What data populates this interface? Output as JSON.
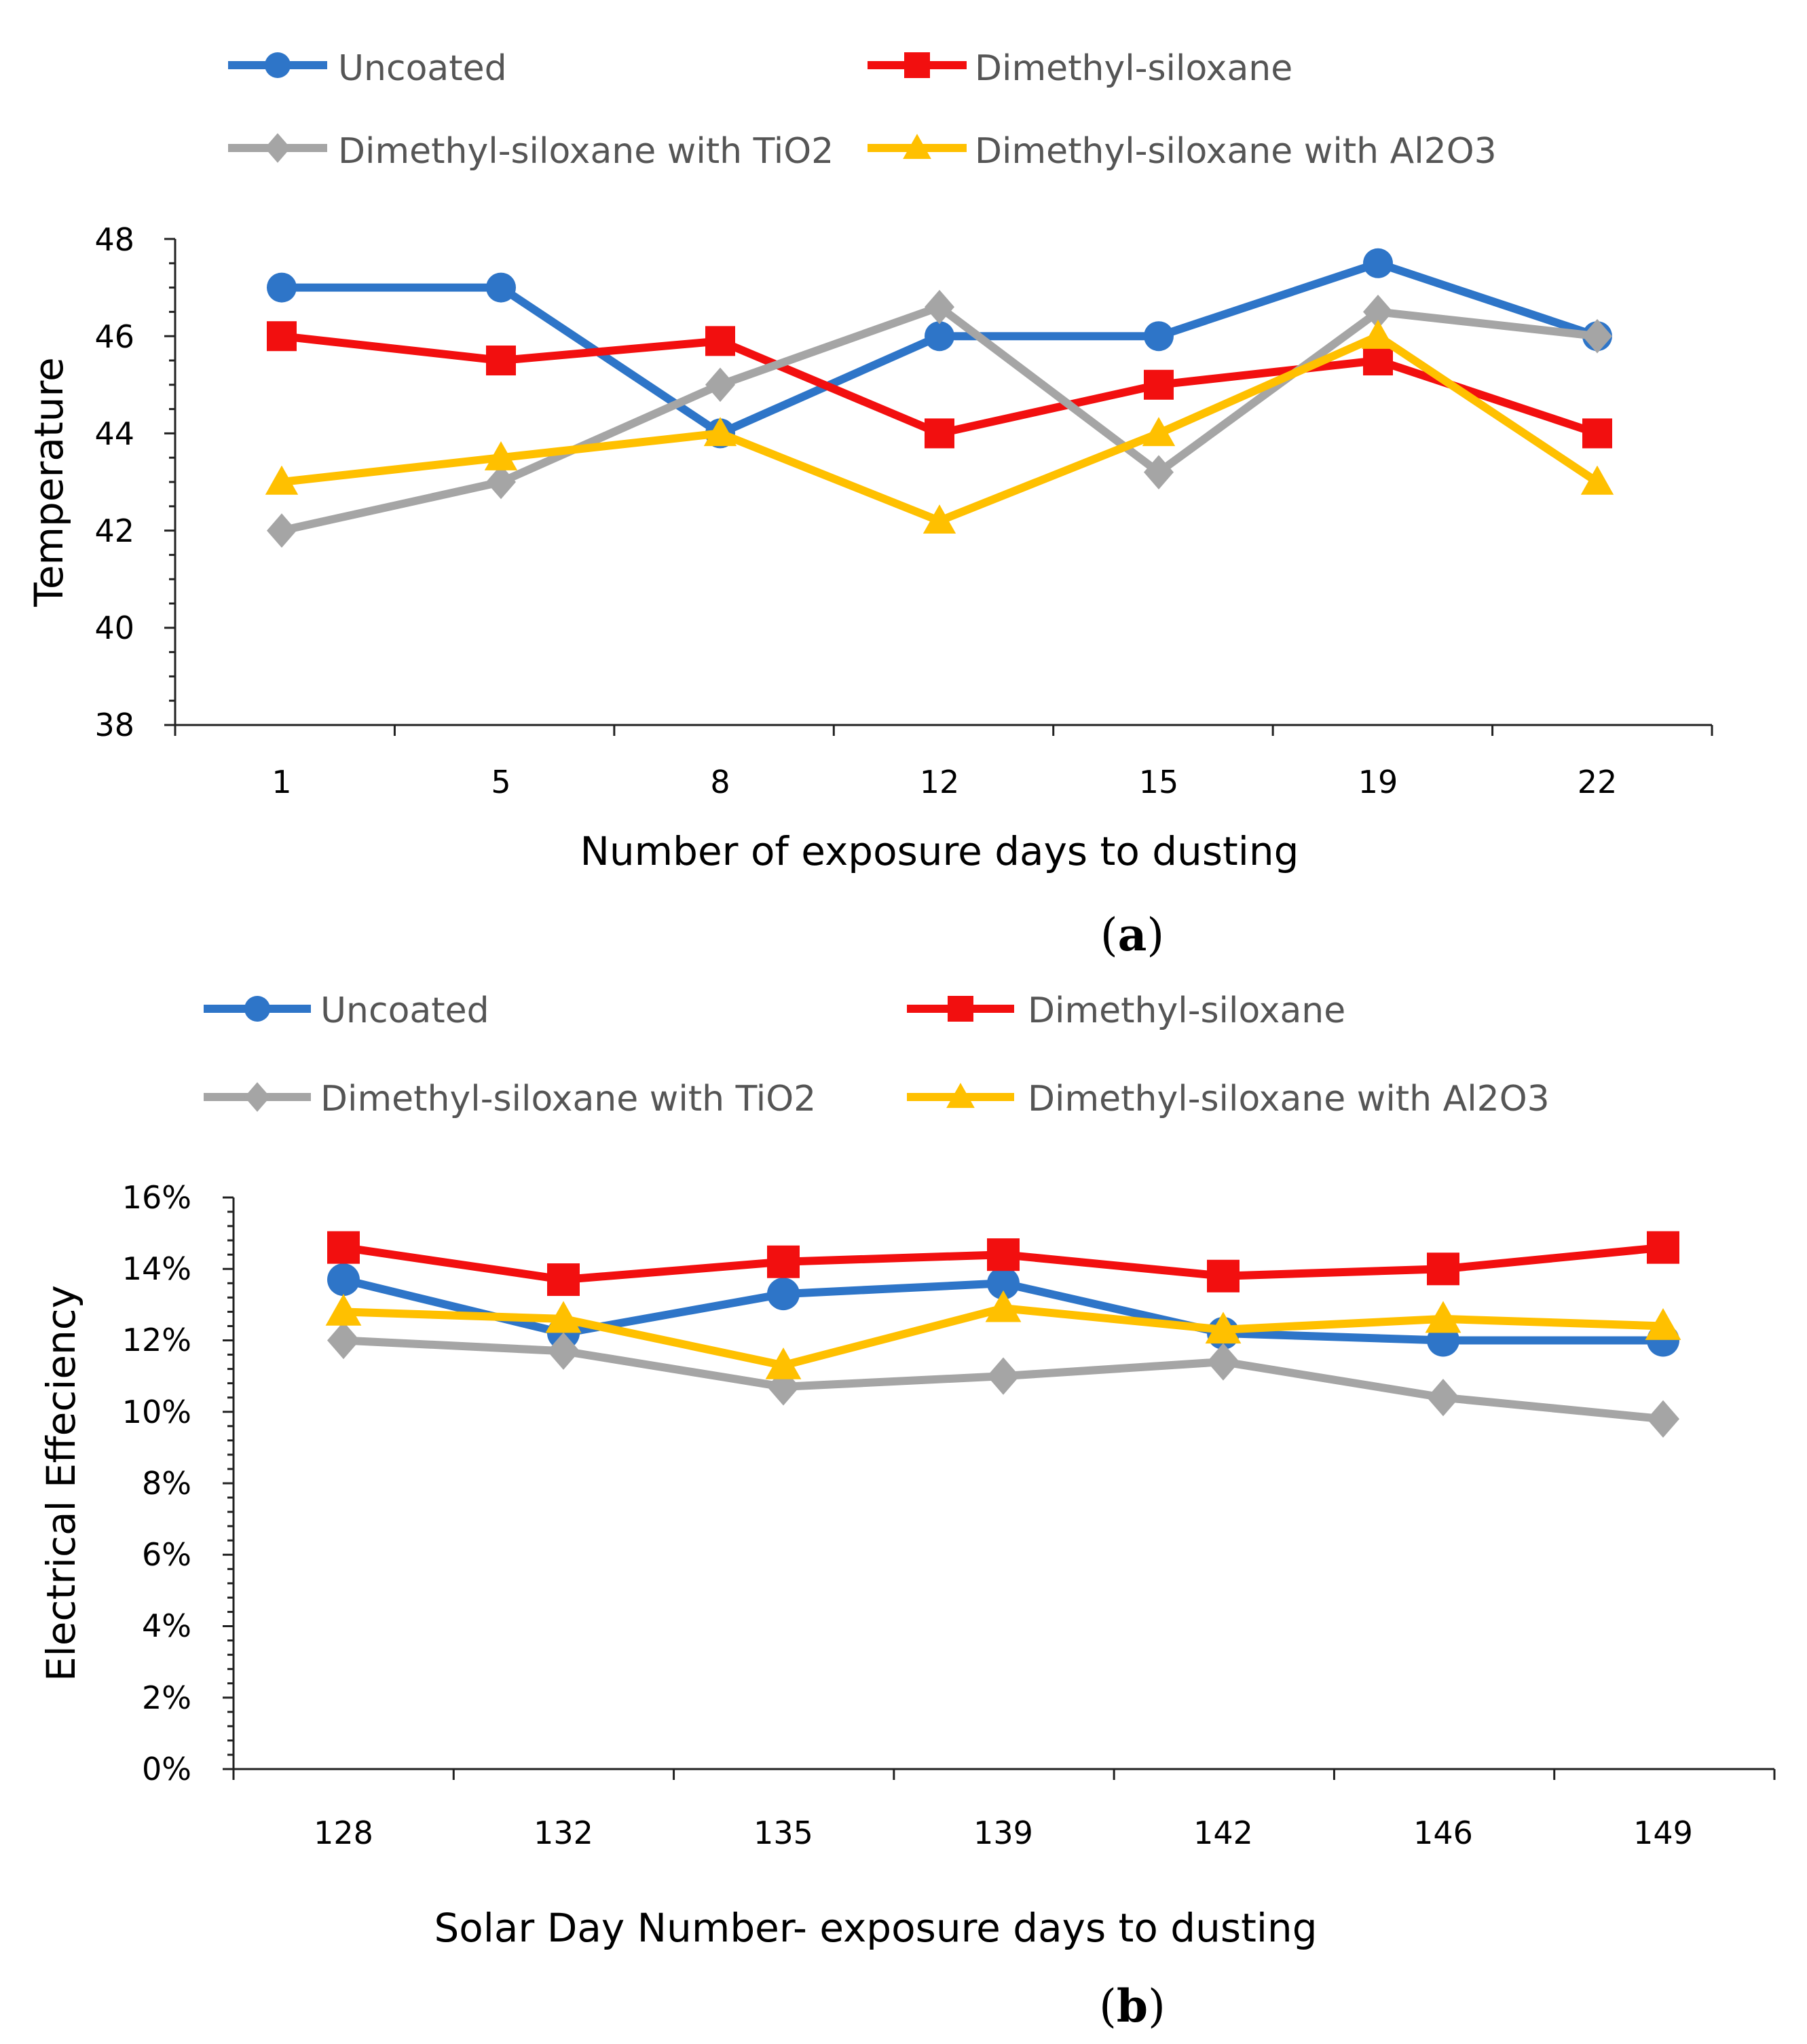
{
  "chart_data": [
    {
      "type": "line",
      "panel": "a",
      "panel_label": {
        "open": "(",
        "letter": "a",
        "close": ")"
      },
      "categories": [
        "1",
        "5",
        "8",
        "12",
        "15",
        "19",
        "22"
      ],
      "xlabel": "Number of exposure days to dusting",
      "ylabel": "Temperature",
      "ylim": [
        38,
        48
      ],
      "yticks": [
        "38",
        "40",
        "42",
        "44",
        "46",
        "48"
      ],
      "legend_position": "top",
      "series": [
        {
          "name": "Uncoated",
          "color": "#2E75C8",
          "marker": "circle",
          "values": [
            47,
            47,
            44,
            46,
            46,
            47.5,
            46
          ]
        },
        {
          "name": "Dimethyl-siloxane",
          "color": "#F20F0F",
          "marker": "square",
          "values": [
            46,
            45.5,
            45.9,
            44,
            45,
            45.5,
            44
          ]
        },
        {
          "name": "Dimethyl-siloxane with TiO2",
          "color": "#A5A5A5",
          "marker": "diamond",
          "values": [
            42,
            43,
            45,
            46.6,
            43.2,
            46.5,
            46
          ]
        },
        {
          "name": "Dimethyl-siloxane with Al2O3",
          "color": "#FFC000",
          "marker": "triangle",
          "values": [
            43,
            43.5,
            44,
            42.2,
            44,
            46,
            43
          ]
        }
      ]
    },
    {
      "type": "line",
      "panel": "b",
      "panel_label": {
        "open": "(",
        "letter": "b",
        "close": ")"
      },
      "categories": [
        "128",
        "132",
        "135",
        "139",
        "142",
        "146",
        "149"
      ],
      "xlabel": "Solar Day Number- exposure days to dusting",
      "ylabel": "Electrical Effeciency",
      "ylim": [
        0,
        16
      ],
      "yticks": [
        "0%",
        "2%",
        "4%",
        "6%",
        "8%",
        "10%",
        "12%",
        "14%",
        "16%"
      ],
      "legend_position": "top",
      "series": [
        {
          "name": "Uncoated",
          "color": "#2E75C8",
          "marker": "circle",
          "values": [
            13.7,
            12.2,
            13.3,
            13.6,
            12.2,
            12,
            12
          ]
        },
        {
          "name": "Dimethyl-siloxane",
          "color": "#F20F0F",
          "marker": "square",
          "values": [
            14.6,
            13.7,
            14.2,
            14.4,
            13.8,
            14,
            14.6
          ]
        },
        {
          "name": "Dimethyl-siloxane with TiO2",
          "color": "#A5A5A5",
          "marker": "diamond",
          "values": [
            12,
            11.7,
            10.7,
            11,
            11.4,
            10.4,
            9.8
          ]
        },
        {
          "name": "Dimethyl-siloxane with Al2O3",
          "color": "#FFC000",
          "marker": "triangle",
          "values": [
            12.8,
            12.6,
            11.3,
            12.9,
            12.3,
            12.6,
            12.4
          ]
        }
      ]
    }
  ]
}
